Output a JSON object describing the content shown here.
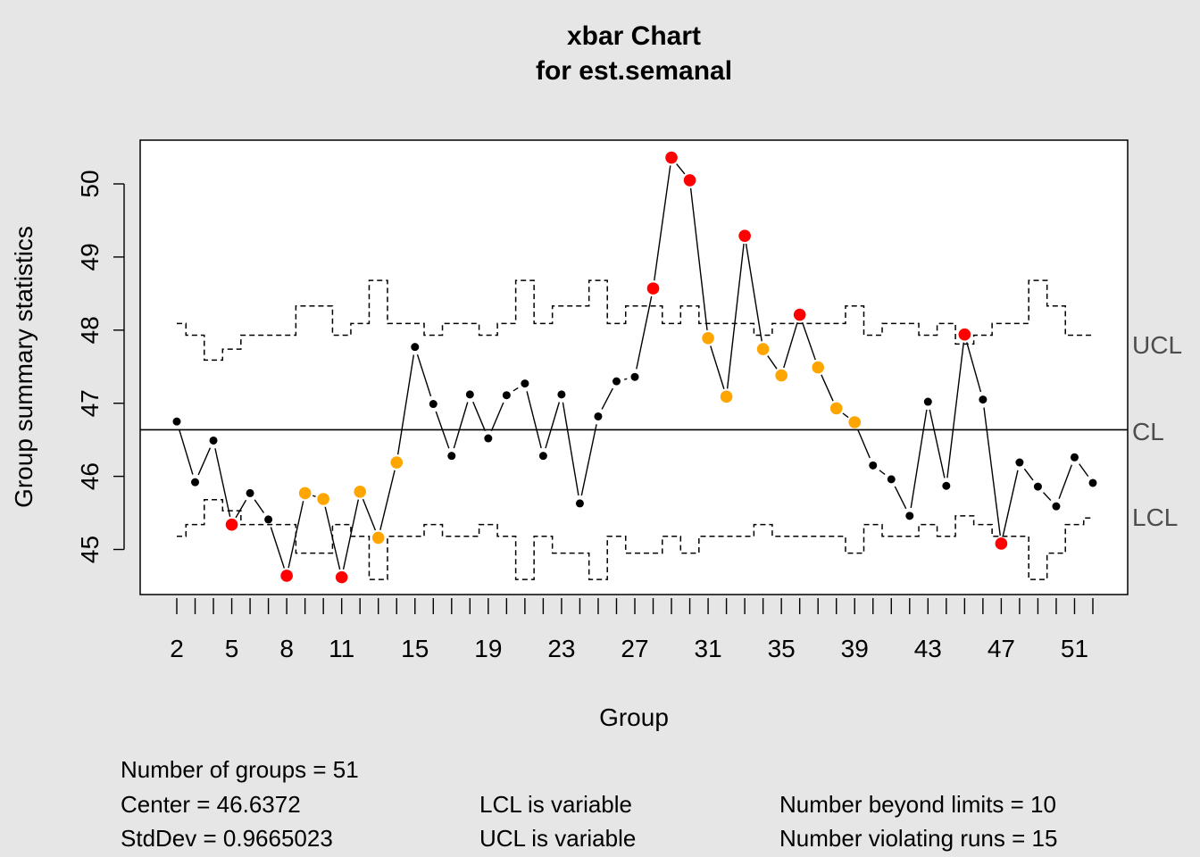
{
  "chart_data": {
    "type": "line",
    "title": "xbar Chart",
    "subtitle": "for est.semanal",
    "xlabel": "Group",
    "ylabel": "Group summary statistics",
    "ylim": [
      44.4,
      50.6
    ],
    "yticks": [
      45,
      46,
      47,
      48,
      49,
      50
    ],
    "xtick_labels": [
      "2",
      "5",
      "8",
      "11",
      "15",
      "19",
      "23",
      "27",
      "31",
      "35",
      "39",
      "43",
      "47",
      "51"
    ],
    "center": 46.6372,
    "limit_labels": {
      "ucl": "UCL",
      "cl": "CL",
      "lcl": "LCL"
    },
    "groups": [
      "2",
      "3",
      "4",
      "5",
      "6",
      "7",
      "8",
      "9",
      "10",
      "11",
      "12",
      "13",
      "14",
      "15",
      "16",
      "17",
      "18",
      "19",
      "20",
      "21",
      "22",
      "23",
      "24",
      "25",
      "26",
      "27",
      "28",
      "29",
      "30",
      "31",
      "32",
      "33",
      "34",
      "35",
      "36",
      "37",
      "38",
      "39",
      "40",
      "41",
      "42",
      "43",
      "44",
      "45",
      "46",
      "47",
      "48",
      "49",
      "50",
      "51",
      "52"
    ],
    "values": [
      46.75,
      45.92,
      46.49,
      45.34,
      45.77,
      45.41,
      44.64,
      45.77,
      45.69,
      44.62,
      45.79,
      45.16,
      46.19,
      47.77,
      46.99,
      46.28,
      47.12,
      46.52,
      47.11,
      47.27,
      46.28,
      47.12,
      45.63,
      46.82,
      47.3,
      47.36,
      48.57,
      50.36,
      50.05,
      47.89,
      47.09,
      49.29,
      47.74,
      47.38,
      48.21,
      47.49,
      46.93,
      46.74,
      46.15,
      45.96,
      45.46,
      47.02,
      45.87,
      47.94,
      47.05,
      45.08,
      46.19,
      45.86,
      45.59,
      46.26,
      45.91
    ],
    "ucl": [
      48.09,
      47.93,
      47.59,
      47.74,
      47.93,
      47.93,
      47.93,
      48.33,
      48.33,
      47.93,
      48.09,
      48.68,
      48.09,
      48.09,
      47.93,
      48.09,
      48.09,
      47.93,
      48.09,
      48.68,
      48.09,
      48.33,
      48.33,
      48.68,
      48.09,
      48.33,
      48.33,
      48.09,
      48.33,
      48.09,
      48.09,
      48.09,
      47.93,
      48.09,
      48.09,
      48.09,
      48.09,
      48.33,
      47.93,
      48.09,
      48.09,
      47.93,
      48.09,
      47.81,
      47.93,
      48.09,
      48.09,
      48.68,
      48.33,
      47.93,
      47.93
    ],
    "lcl": [
      45.18,
      45.34,
      45.68,
      45.53,
      45.34,
      45.34,
      45.34,
      44.95,
      44.95,
      45.34,
      45.18,
      44.59,
      45.18,
      45.18,
      45.34,
      45.18,
      45.18,
      45.34,
      45.18,
      44.59,
      45.18,
      44.95,
      44.95,
      44.59,
      45.18,
      44.95,
      44.95,
      45.18,
      44.95,
      45.18,
      45.18,
      45.18,
      45.34,
      45.18,
      45.18,
      45.18,
      45.18,
      44.95,
      45.34,
      45.18,
      45.18,
      45.34,
      45.18,
      45.46,
      45.34,
      45.18,
      45.18,
      44.59,
      44.95,
      45.34,
      45.43
    ],
    "point_status": [
      "n",
      "n",
      "n",
      "b",
      "n",
      "n",
      "b",
      "r",
      "r",
      "b",
      "r",
      "r",
      "r",
      "n",
      "n",
      "n",
      "n",
      "n",
      "n",
      "n",
      "n",
      "n",
      "n",
      "n",
      "n",
      "n",
      "b",
      "b",
      "b",
      "r",
      "r",
      "b",
      "r",
      "r",
      "b",
      "r",
      "r",
      "r",
      "n",
      "n",
      "n",
      "n",
      "n",
      "b",
      "n",
      "b",
      "n",
      "n",
      "n",
      "n",
      "n"
    ],
    "colors": {
      "normal": "#000000",
      "beyond_limits": "#ff0000",
      "violating_runs": "#ffa500",
      "background": "#e6e6e6",
      "plot_area": "#ffffff"
    }
  },
  "stats": {
    "groups": "Number of groups = 51",
    "center": "Center = 46.6372",
    "stddev": "StdDev = 0.9665023",
    "lcl": "LCL is variable",
    "ucl": "UCL is variable",
    "beyond": "Number beyond limits = 10",
    "runs": "Number violating runs = 15"
  }
}
